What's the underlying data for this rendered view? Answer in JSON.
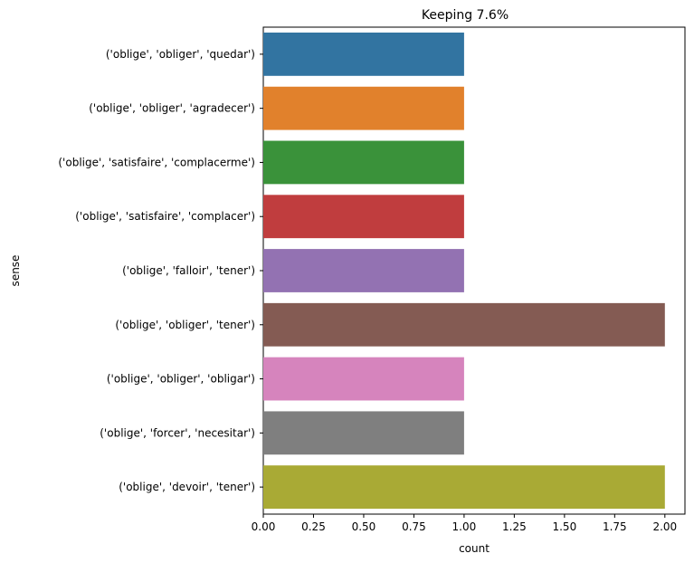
{
  "chart_data": {
    "type": "bar",
    "orientation": "horizontal",
    "title": "Keeping 7.6%",
    "xlabel": "count",
    "ylabel": "sense",
    "xlim": [
      0,
      2.1
    ],
    "xticks": [
      "0.00",
      "0.25",
      "0.50",
      "0.75",
      "1.00",
      "1.25",
      "1.50",
      "1.75",
      "2.00"
    ],
    "grid": false,
    "categories": [
      "('oblige', 'obliger', 'quedar')",
      "('oblige', 'obliger', 'agradecer')",
      "('oblige', 'satisfaire', 'complacerme')",
      "('oblige', 'satisfaire', 'complacer')",
      "('oblige', 'falloir', 'tener')",
      "('oblige', 'obliger', 'tener')",
      "('oblige', 'obliger', 'obligar')",
      "('oblige', 'forcer', 'necesitar')",
      "('oblige', 'devoir', 'tener')"
    ],
    "values": [
      1,
      1,
      1,
      1,
      1,
      2,
      1,
      1,
      2
    ],
    "colors": [
      "#3274a1",
      "#e1812c",
      "#3a923a",
      "#c03d3e",
      "#9372b2",
      "#845b53",
      "#d684bd",
      "#7f7f7f",
      "#a9aa35"
    ]
  }
}
